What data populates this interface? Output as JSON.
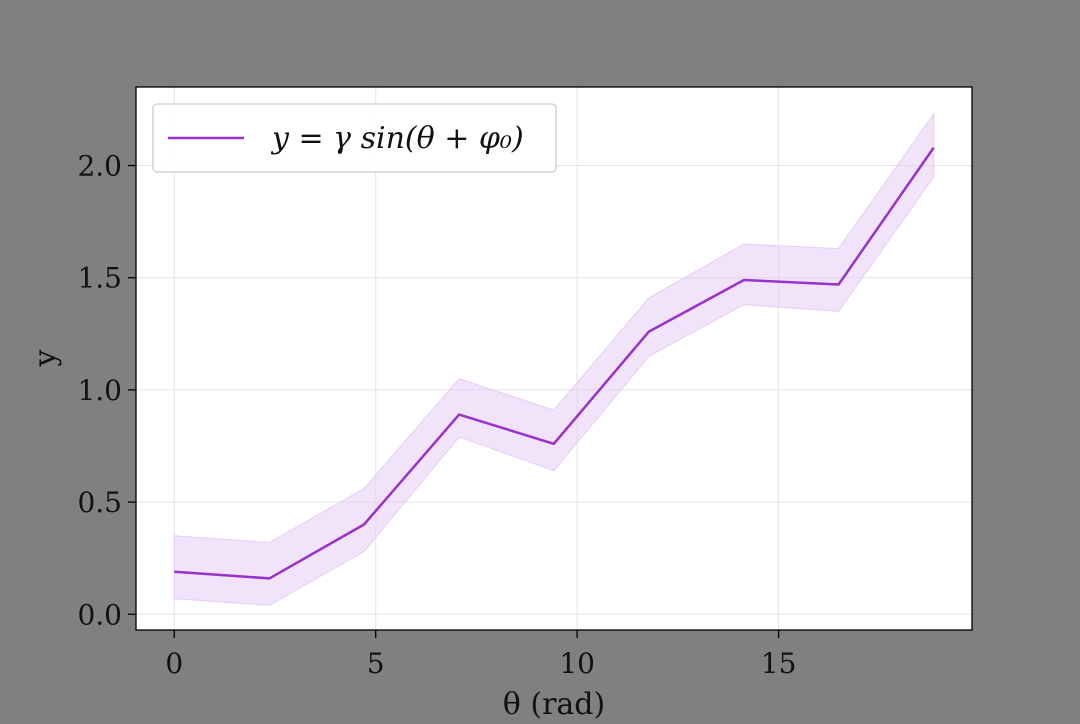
{
  "page": {
    "background": "#808080"
  },
  "chart_data": {
    "type": "line",
    "xlabel": "θ (rad)",
    "ylabel": "y",
    "xlim": [
      -0.95,
      19.8
    ],
    "ylim": [
      -0.07,
      2.35
    ],
    "xticks": [
      0,
      5,
      10,
      15
    ],
    "xtick_labels": [
      "0",
      "5",
      "10",
      "15"
    ],
    "yticks": [
      0.0,
      0.5,
      1.0,
      1.5,
      2.0
    ],
    "ytick_labels": [
      "0.0",
      "0.5",
      "1.0",
      "1.5",
      "2.0"
    ],
    "grid": true,
    "legend_position": "upper-left",
    "line_color": "#9932CC",
    "band_color": "#E6CCF5",
    "series": [
      {
        "name": "y = γ sin(θ + φ₀)",
        "x": [
          0,
          2.36,
          4.71,
          7.07,
          9.42,
          11.78,
          14.14,
          16.49,
          18.85
        ],
        "y": [
          0.19,
          0.16,
          0.4,
          0.89,
          0.76,
          1.26,
          1.49,
          1.47,
          2.08
        ],
        "lower": [
          0.07,
          0.04,
          0.28,
          0.79,
          0.64,
          1.15,
          1.38,
          1.35,
          1.95
        ],
        "upper": [
          0.35,
          0.32,
          0.56,
          1.05,
          0.91,
          1.41,
          1.65,
          1.63,
          2.23
        ]
      }
    ]
  }
}
